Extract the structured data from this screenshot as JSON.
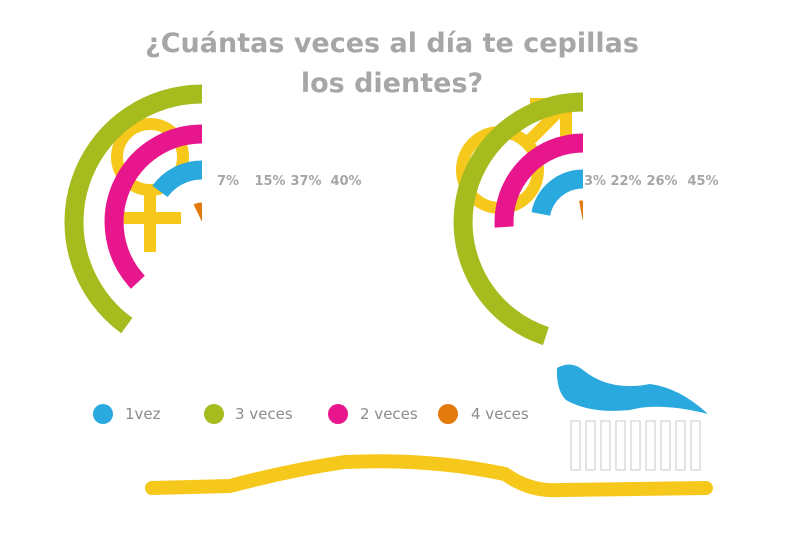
{
  "title_line1": "¿Cuántas veces al día te cepillas",
  "title_line2": "los dientes?",
  "colors": {
    "1vez": "#2aa9df",
    "3_veces": "#a5bb1e",
    "2_veces": "#e7168c",
    "4_veces": "#e37a0d",
    "symbol": "#f7c81c",
    "toothbrush": "#f7c81c",
    "paste": "#2aa9df"
  },
  "icons": {
    "female": "female-symbol-icon",
    "male": "male-symbol-icon",
    "toothbrush": "toothbrush-icon"
  },
  "legend": [
    {
      "label": "1vez",
      "color": "#2aa9df"
    },
    {
      "label": "3 veces",
      "color": "#a5bb1e"
    },
    {
      "label": "2 veces",
      "color": "#e7168c"
    },
    {
      "label": "4 veces",
      "color": "#e37a0d"
    }
  ],
  "chart_data": [
    {
      "type": "radial-bar",
      "group": "female",
      "unit": "%",
      "categories": [
        "4 veces",
        "1vez",
        "2 veces",
        "3 veces"
      ],
      "values": [
        7,
        15,
        37,
        40
      ],
      "labels": [
        "7%",
        "15%",
        "37%",
        "40%"
      ],
      "colors": [
        "#e37a0d",
        "#2aa9df",
        "#e7168c",
        "#a5bb1e"
      ]
    },
    {
      "type": "radial-bar",
      "group": "male",
      "unit": "%",
      "categories": [
        "4 veces",
        "1vez",
        "2 veces",
        "3 veces"
      ],
      "values": [
        3,
        22,
        26,
        45
      ],
      "labels": [
        "3%",
        "22%",
        "26%",
        "45%"
      ],
      "colors": [
        "#e37a0d",
        "#2aa9df",
        "#e7168c",
        "#a5bb1e"
      ]
    }
  ]
}
